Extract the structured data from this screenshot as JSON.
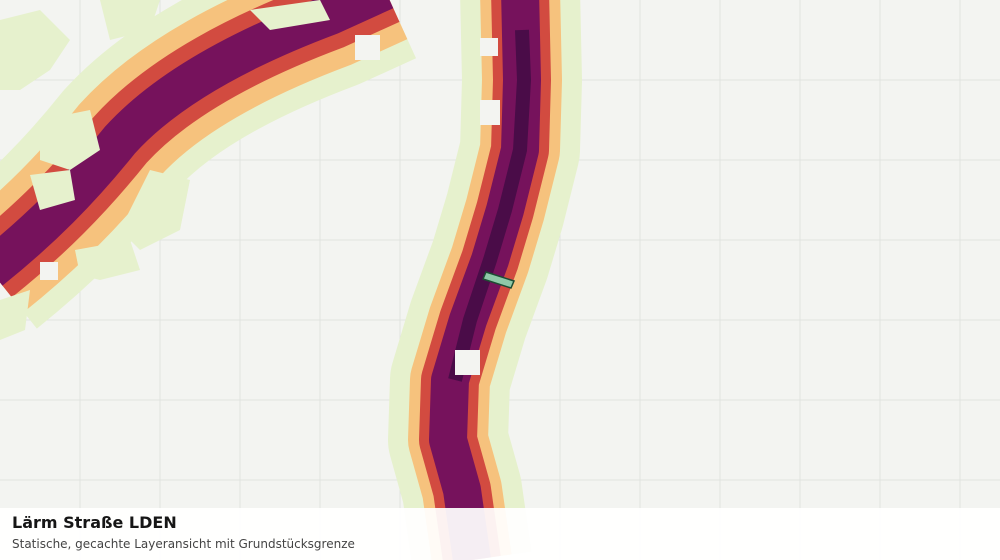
{
  "layer": {
    "title": "Lärm Straße LDEN",
    "subtitle": "Statische, gecachte Layeransicht mit Grundstücksgrenze"
  },
  "legend_colors": {
    "background": "#f3f4f1",
    "grid": "#e0e3df",
    "band_1_light_green": "#e6f1cd",
    "band_2_peach": "#f6c27d",
    "band_3_red": "#d24b40",
    "band_4_purple": "#76125c",
    "band_5_dark_purple": "#4a0c48",
    "parcel_fill": "#8fc9a8",
    "parcel_outline": "#1d4d34"
  }
}
